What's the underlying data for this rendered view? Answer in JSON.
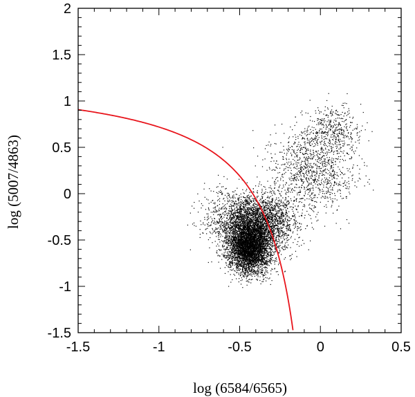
{
  "chart_data": {
    "type": "scatter",
    "title": "",
    "xlabel": "log (6584/6565)",
    "ylabel": "log (5007/4863)",
    "xlim": [
      -1.5,
      0.5
    ],
    "ylim": [
      -1.5,
      2
    ],
    "x_ticks": [
      -1.5,
      -1,
      -0.5,
      0,
      0.5
    ],
    "x_tick_labels": [
      "-1.5",
      "-1",
      "-0.5",
      "0",
      "0.5"
    ],
    "y_ticks": [
      -1.5,
      -1,
      -0.5,
      0,
      0.5,
      1,
      1.5,
      2
    ],
    "y_tick_labels": [
      "-1.5",
      "-1",
      "-0.5",
      "0",
      "0.5",
      "1",
      "1.5",
      "2"
    ],
    "grid": false,
    "legend": "none",
    "colors": {
      "points": "#000000",
      "curve": "#e8141b",
      "axes": "#000000"
    },
    "series": [
      {
        "kind": "points",
        "description_of_distribution": "dense cloud of ~9000 galaxies",
        "clusters": [
          {
            "center": [
              -0.44,
              -0.58
            ],
            "spread": [
              0.065,
              0.14
            ],
            "count": 4200
          },
          {
            "center": [
              -0.38,
              -0.32
            ],
            "spread": [
              0.11,
              0.16
            ],
            "count": 2600
          },
          {
            "center": [
              -0.55,
              -0.25
            ],
            "spread": [
              0.09,
              0.14
            ],
            "count": 600
          },
          {
            "center": [
              -0.05,
              0.25
            ],
            "spread": [
              0.13,
              0.22
            ],
            "count": 1100
          },
          {
            "center": [
              0.08,
              0.7
            ],
            "spread": [
              0.08,
              0.13
            ],
            "count": 400
          }
        ]
      },
      {
        "kind": "curve",
        "equation": "y = 0.61 / (x - 0.05) + 1.3",
        "x_range": [
          -1.5,
          -0.17
        ]
      }
    ]
  }
}
